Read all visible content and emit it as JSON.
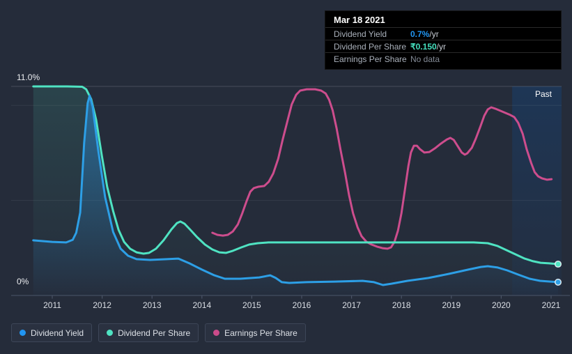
{
  "tooltip": {
    "date": "Mar 18 2021",
    "rows": [
      {
        "label": "Dividend Yield",
        "value": "0.7%",
        "suffix": " /yr",
        "color": "#2196f3",
        "nodata": false
      },
      {
        "label": "Dividend Per Share",
        "value": "₹0.150",
        "suffix": " /yr",
        "color": "#45e0be",
        "nodata": false
      },
      {
        "label": "Earnings Per Share",
        "value": "No data",
        "suffix": "",
        "color": "#848b96",
        "nodata": true
      }
    ]
  },
  "y_axis": {
    "max_label": "11.0%",
    "zero_label": "0%"
  },
  "past_region_label": "Past",
  "legend": [
    {
      "label": "Dividend Yield",
      "color": "#2196f3"
    },
    {
      "label": "Dividend Per Share",
      "color": "#4fe3c2"
    },
    {
      "label": "Earnings Per Share",
      "color": "#cb4b8a"
    }
  ],
  "chart_data": {
    "type": "line",
    "title": "Dividend history",
    "y_unit": "%",
    "ylim": [
      0,
      11
    ],
    "y_max_gridline_label": "11.0%",
    "gridlines_pct": [
      11,
      10,
      5,
      0
    ],
    "x_ticks": [
      2011,
      2012,
      2013,
      2014,
      2015,
      2016,
      2017,
      2018,
      2019,
      2020,
      2021
    ],
    "past_region": {
      "start_year": 2020.22,
      "label": "Past"
    },
    "series": [
      {
        "name": "Earnings Per Share",
        "color": "#cd4d8d",
        "fill": false,
        "end_dot": false,
        "points": [
          [
            2014.21,
            3.3
          ],
          [
            2014.31,
            3.19
          ],
          [
            2014.42,
            3.15
          ],
          [
            2014.52,
            3.19
          ],
          [
            2014.62,
            3.37
          ],
          [
            2014.72,
            3.74
          ],
          [
            2014.81,
            4.33
          ],
          [
            2014.9,
            4.99
          ],
          [
            2014.97,
            5.46
          ],
          [
            2015.04,
            5.65
          ],
          [
            2015.13,
            5.72
          ],
          [
            2015.25,
            5.76
          ],
          [
            2015.34,
            5.98
          ],
          [
            2015.43,
            6.42
          ],
          [
            2015.53,
            7.19
          ],
          [
            2015.62,
            8.21
          ],
          [
            2015.72,
            9.24
          ],
          [
            2015.8,
            10.05
          ],
          [
            2015.89,
            10.56
          ],
          [
            2015.97,
            10.78
          ],
          [
            2016.1,
            10.85
          ],
          [
            2016.27,
            10.85
          ],
          [
            2016.39,
            10.78
          ],
          [
            2016.48,
            10.63
          ],
          [
            2016.55,
            10.3
          ],
          [
            2016.62,
            9.75
          ],
          [
            2016.7,
            8.8
          ],
          [
            2016.78,
            7.66
          ],
          [
            2016.87,
            6.45
          ],
          [
            2016.95,
            5.28
          ],
          [
            2017.03,
            4.33
          ],
          [
            2017.12,
            3.59
          ],
          [
            2017.2,
            3.12
          ],
          [
            2017.3,
            2.82
          ],
          [
            2017.4,
            2.68
          ],
          [
            2017.51,
            2.57
          ],
          [
            2017.62,
            2.49
          ],
          [
            2017.72,
            2.46
          ],
          [
            2017.79,
            2.53
          ],
          [
            2017.86,
            2.82
          ],
          [
            2017.93,
            3.41
          ],
          [
            2018.0,
            4.33
          ],
          [
            2018.07,
            5.57
          ],
          [
            2018.14,
            6.82
          ],
          [
            2018.19,
            7.52
          ],
          [
            2018.25,
            7.88
          ],
          [
            2018.31,
            7.88
          ],
          [
            2018.37,
            7.7
          ],
          [
            2018.46,
            7.52
          ],
          [
            2018.56,
            7.55
          ],
          [
            2018.67,
            7.74
          ],
          [
            2018.79,
            7.99
          ],
          [
            2018.91,
            8.21
          ],
          [
            2018.98,
            8.29
          ],
          [
            2019.05,
            8.18
          ],
          [
            2019.13,
            7.85
          ],
          [
            2019.21,
            7.52
          ],
          [
            2019.27,
            7.41
          ],
          [
            2019.32,
            7.48
          ],
          [
            2019.41,
            7.77
          ],
          [
            2019.49,
            8.25
          ],
          [
            2019.58,
            8.87
          ],
          [
            2019.66,
            9.46
          ],
          [
            2019.73,
            9.79
          ],
          [
            2019.8,
            9.9
          ],
          [
            2019.88,
            9.83
          ],
          [
            2019.98,
            9.72
          ],
          [
            2020.08,
            9.61
          ],
          [
            2020.18,
            9.5
          ],
          [
            2020.26,
            9.39
          ],
          [
            2020.34,
            9.09
          ],
          [
            2020.43,
            8.51
          ],
          [
            2020.51,
            7.7
          ],
          [
            2020.6,
            6.97
          ],
          [
            2020.67,
            6.49
          ],
          [
            2020.74,
            6.27
          ],
          [
            2020.82,
            6.16
          ],
          [
            2020.92,
            6.09
          ],
          [
            2021.01,
            6.12
          ]
        ]
      },
      {
        "name": "Dividend Per Share",
        "color": "#4fe3c2",
        "fill": true,
        "fill_from": "rgba(79,227,194,0.13)",
        "fill_to": "rgba(79,227,194,0)",
        "end_dot": true,
        "points": [
          [
            2010.62,
            11.0
          ],
          [
            2011.3,
            11.0
          ],
          [
            2011.6,
            10.98
          ],
          [
            2011.68,
            10.85
          ],
          [
            2011.78,
            10.34
          ],
          [
            2011.88,
            9.24
          ],
          [
            2011.99,
            7.41
          ],
          [
            2012.1,
            5.72
          ],
          [
            2012.22,
            4.44
          ],
          [
            2012.33,
            3.45
          ],
          [
            2012.44,
            2.82
          ],
          [
            2012.56,
            2.46
          ],
          [
            2012.69,
            2.27
          ],
          [
            2012.83,
            2.2
          ],
          [
            2012.94,
            2.24
          ],
          [
            2013.08,
            2.46
          ],
          [
            2013.23,
            2.9
          ],
          [
            2013.39,
            3.48
          ],
          [
            2013.5,
            3.81
          ],
          [
            2013.57,
            3.89
          ],
          [
            2013.65,
            3.78
          ],
          [
            2013.77,
            3.45
          ],
          [
            2013.9,
            3.08
          ],
          [
            2014.06,
            2.68
          ],
          [
            2014.21,
            2.42
          ],
          [
            2014.35,
            2.27
          ],
          [
            2014.48,
            2.24
          ],
          [
            2014.62,
            2.35
          ],
          [
            2014.79,
            2.53
          ],
          [
            2014.95,
            2.68
          ],
          [
            2015.12,
            2.75
          ],
          [
            2015.33,
            2.79
          ],
          [
            2015.82,
            2.79
          ],
          [
            2016.94,
            2.79
          ],
          [
            2018.33,
            2.79
          ],
          [
            2019.45,
            2.79
          ],
          [
            2019.73,
            2.75
          ],
          [
            2019.93,
            2.6
          ],
          [
            2020.11,
            2.38
          ],
          [
            2020.29,
            2.16
          ],
          [
            2020.47,
            1.94
          ],
          [
            2020.64,
            1.8
          ],
          [
            2020.79,
            1.72
          ],
          [
            2020.96,
            1.69
          ],
          [
            2021.14,
            1.65
          ]
        ]
      },
      {
        "name": "Dividend Yield",
        "color": "#2d9fe6",
        "fill": true,
        "fill_from": "rgba(42,140,214,0.55)",
        "fill_to": "rgba(42,140,214,0.02)",
        "end_dot": true,
        "points": [
          [
            2010.62,
            2.9
          ],
          [
            2011.0,
            2.82
          ],
          [
            2011.28,
            2.79
          ],
          [
            2011.41,
            2.93
          ],
          [
            2011.48,
            3.3
          ],
          [
            2011.56,
            4.36
          ],
          [
            2011.64,
            8.03
          ],
          [
            2011.71,
            10.12
          ],
          [
            2011.75,
            10.52
          ],
          [
            2011.81,
            9.94
          ],
          [
            2011.92,
            7.66
          ],
          [
            2012.06,
            5.17
          ],
          [
            2012.22,
            3.34
          ],
          [
            2012.37,
            2.46
          ],
          [
            2012.52,
            2.09
          ],
          [
            2012.69,
            1.91
          ],
          [
            2012.96,
            1.87
          ],
          [
            2013.3,
            1.91
          ],
          [
            2013.53,
            1.94
          ],
          [
            2013.75,
            1.69
          ],
          [
            2014.0,
            1.36
          ],
          [
            2014.25,
            1.06
          ],
          [
            2014.46,
            0.88
          ],
          [
            2014.77,
            0.88
          ],
          [
            2015.15,
            0.95
          ],
          [
            2015.37,
            1.06
          ],
          [
            2015.48,
            0.92
          ],
          [
            2015.6,
            0.7
          ],
          [
            2015.75,
            0.66
          ],
          [
            2016.1,
            0.7
          ],
          [
            2016.66,
            0.73
          ],
          [
            2017.22,
            0.77
          ],
          [
            2017.45,
            0.7
          ],
          [
            2017.63,
            0.55
          ],
          [
            2017.8,
            0.62
          ],
          [
            2018.12,
            0.77
          ],
          [
            2018.54,
            0.92
          ],
          [
            2018.96,
            1.14
          ],
          [
            2019.34,
            1.36
          ],
          [
            2019.59,
            1.5
          ],
          [
            2019.73,
            1.54
          ],
          [
            2019.93,
            1.47
          ],
          [
            2020.12,
            1.32
          ],
          [
            2020.34,
            1.1
          ],
          [
            2020.57,
            0.88
          ],
          [
            2020.78,
            0.77
          ],
          [
            2020.99,
            0.73
          ],
          [
            2021.14,
            0.7
          ]
        ]
      }
    ]
  }
}
